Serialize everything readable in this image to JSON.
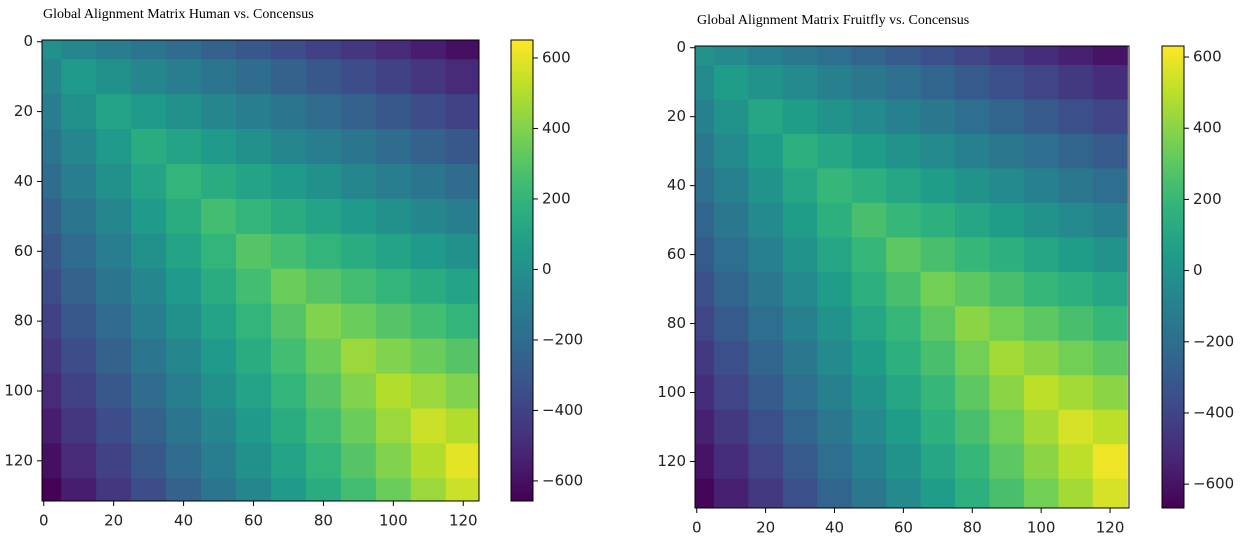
{
  "chart_data": [
    {
      "type": "heatmap",
      "title": "Global Alignment Matrix Human vs. Concensus",
      "colormap": "viridis",
      "x": [
        0,
        10,
        20,
        30,
        40,
        50,
        60,
        70,
        80,
        90,
        100,
        110,
        120
      ],
      "y": [
        0,
        10,
        20,
        30,
        40,
        50,
        60,
        70,
        80,
        90,
        100,
        110,
        120,
        130
      ],
      "z": [
        [
          0,
          -50,
          -100,
          -150,
          -200,
          -250,
          -300,
          -350,
          -400,
          -450,
          -500,
          -550,
          -600
        ],
        [
          -50,
          50,
          0,
          -50,
          -100,
          -150,
          -200,
          -250,
          -300,
          -350,
          -400,
          -450,
          -500
        ],
        [
          -100,
          0,
          100,
          50,
          0,
          -50,
          -100,
          -150,
          -200,
          -250,
          -300,
          -350,
          -400
        ],
        [
          -150,
          -50,
          50,
          150,
          100,
          50,
          0,
          -50,
          -100,
          -150,
          -200,
          -250,
          -300
        ],
        [
          -200,
          -100,
          0,
          100,
          200,
          150,
          100,
          50,
          0,
          -50,
          -100,
          -150,
          -200
        ],
        [
          -250,
          -150,
          -50,
          50,
          150,
          250,
          200,
          150,
          100,
          50,
          0,
          -50,
          -100
        ],
        [
          -300,
          -200,
          -100,
          0,
          100,
          200,
          300,
          250,
          200,
          150,
          100,
          50,
          0
        ],
        [
          -350,
          -250,
          -150,
          -50,
          50,
          150,
          250,
          350,
          300,
          250,
          200,
          150,
          100
        ],
        [
          -400,
          -300,
          -200,
          -100,
          0,
          100,
          200,
          300,
          400,
          350,
          300,
          250,
          200
        ],
        [
          -450,
          -350,
          -250,
          -150,
          -50,
          50,
          150,
          250,
          350,
          450,
          400,
          350,
          300
        ],
        [
          -500,
          -400,
          -300,
          -200,
          -100,
          0,
          100,
          200,
          300,
          400,
          500,
          450,
          400
        ],
        [
          -550,
          -450,
          -350,
          -250,
          -150,
          -50,
          50,
          150,
          250,
          350,
          450,
          550,
          500
        ],
        [
          -600,
          -500,
          -400,
          -300,
          -200,
          -100,
          0,
          100,
          200,
          300,
          400,
          500,
          600
        ],
        [
          -650,
          -550,
          -450,
          -350,
          -250,
          -150,
          -50,
          50,
          150,
          250,
          350,
          450,
          550
        ]
      ],
      "xlim": [
        -0.5,
        124.5
      ],
      "ylim": [
        -0.5,
        131.5
      ],
      "xticks": [
        0,
        20,
        40,
        60,
        80,
        100,
        120
      ],
      "yticks": [
        0,
        20,
        40,
        60,
        80,
        100,
        120
      ],
      "clim": [
        -657,
        651
      ],
      "cticks": [
        {
          "value": -600,
          "label": "−600"
        },
        {
          "value": -400,
          "label": "−400"
        },
        {
          "value": -200,
          "label": "−200"
        },
        0,
        200,
        400,
        600
      ]
    },
    {
      "type": "heatmap",
      "title": "Global Alignment Matrix Fruitfly vs. Concensus",
      "colormap": "viridis",
      "x": [
        0,
        10,
        20,
        30,
        40,
        50,
        60,
        70,
        80,
        90,
        100,
        110,
        120
      ],
      "y": [
        0,
        10,
        20,
        30,
        40,
        50,
        60,
        70,
        80,
        90,
        100,
        110,
        120,
        130
      ],
      "z": [
        [
          0,
          -50,
          -100,
          -150,
          -200,
          -250,
          -300,
          -350,
          -400,
          -450,
          -500,
          -550,
          -600
        ],
        [
          -50,
          50,
          0,
          -50,
          -100,
          -150,
          -200,
          -250,
          -300,
          -350,
          -400,
          -450,
          -500
        ],
        [
          -100,
          0,
          100,
          50,
          0,
          -50,
          -100,
          -150,
          -200,
          -250,
          -300,
          -350,
          -400
        ],
        [
          -150,
          -50,
          50,
          150,
          100,
          50,
          0,
          -50,
          -100,
          -150,
          -200,
          -250,
          -300
        ],
        [
          -200,
          -100,
          0,
          100,
          200,
          150,
          100,
          50,
          0,
          -50,
          -100,
          -150,
          -200
        ],
        [
          -250,
          -150,
          -50,
          50,
          150,
          250,
          200,
          150,
          100,
          50,
          0,
          -50,
          -100
        ],
        [
          -300,
          -200,
          -100,
          0,
          100,
          200,
          300,
          250,
          200,
          150,
          100,
          50,
          0
        ],
        [
          -350,
          -250,
          -150,
          -50,
          50,
          150,
          250,
          350,
          300,
          250,
          200,
          150,
          100
        ],
        [
          -400,
          -300,
          -200,
          -100,
          0,
          100,
          200,
          300,
          400,
          350,
          300,
          250,
          200
        ],
        [
          -450,
          -350,
          -250,
          -150,
          -50,
          50,
          150,
          250,
          350,
          450,
          400,
          350,
          300
        ],
        [
          -500,
          -400,
          -300,
          -200,
          -100,
          0,
          100,
          200,
          300,
          400,
          500,
          450,
          400
        ],
        [
          -550,
          -450,
          -350,
          -250,
          -150,
          -50,
          50,
          150,
          250,
          350,
          450,
          550,
          500
        ],
        [
          -600,
          -500,
          -400,
          -300,
          -200,
          -100,
          0,
          100,
          200,
          300,
          400,
          500,
          600
        ],
        [
          -650,
          -550,
          -450,
          -350,
          -250,
          -150,
          -50,
          50,
          150,
          250,
          350,
          450,
          550
        ]
      ],
      "xlim": [
        -0.5,
        125.5
      ],
      "ylim": [
        -0.5,
        133.5
      ],
      "xticks": [
        0,
        20,
        40,
        60,
        80,
        100,
        120
      ],
      "yticks": [
        0,
        20,
        40,
        60,
        80,
        100,
        120
      ],
      "clim": [
        -667,
        631
      ],
      "cticks": [
        {
          "value": -600,
          "label": "−600"
        },
        {
          "value": -400,
          "label": "−400"
        },
        {
          "value": -200,
          "label": "−200"
        },
        0,
        200,
        400,
        600
      ]
    }
  ]
}
